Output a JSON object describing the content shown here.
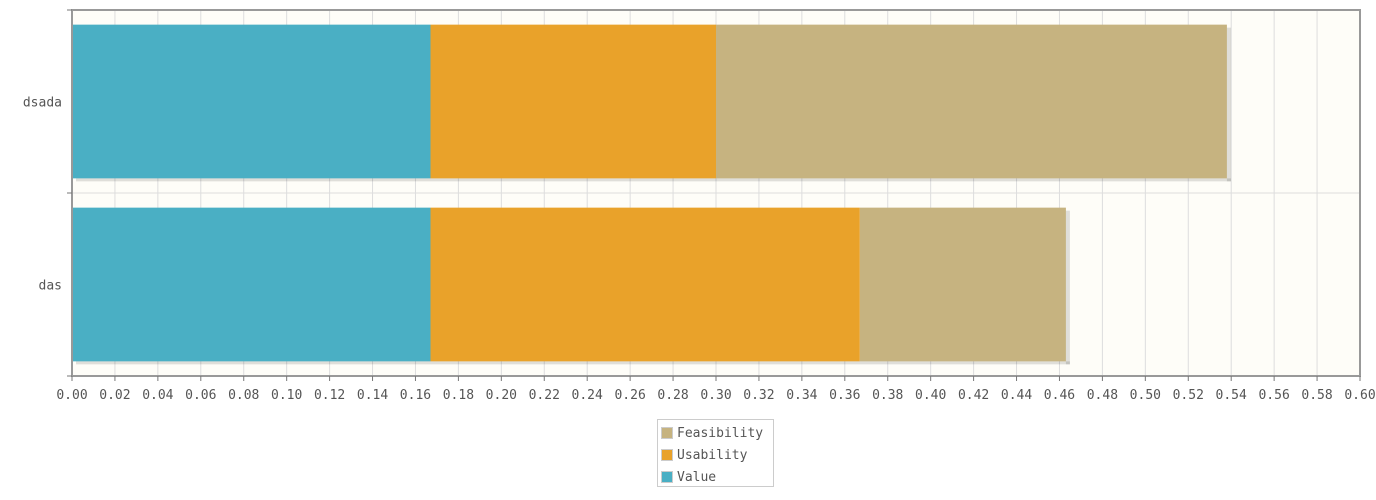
{
  "chart_data": {
    "type": "bar",
    "orientation": "horizontal",
    "stacked": true,
    "categories": [
      "dsada",
      "das"
    ],
    "series": [
      {
        "name": "Value",
        "color": "#4AAFC4",
        "values": [
          0.167,
          0.167
        ]
      },
      {
        "name": "Usability",
        "color": "#E9A22A",
        "values": [
          0.133,
          0.2
        ]
      },
      {
        "name": "Feasibility",
        "color": "#C6B380",
        "values": [
          0.238,
          0.096
        ]
      }
    ],
    "xlim": [
      0,
      0.6
    ],
    "xticks": [
      "0.00",
      "0.02",
      "0.04",
      "0.06",
      "0.08",
      "0.10",
      "0.12",
      "0.14",
      "0.16",
      "0.18",
      "0.20",
      "0.22",
      "0.24",
      "0.26",
      "0.28",
      "0.30",
      "0.32",
      "0.34",
      "0.36",
      "0.38",
      "0.40",
      "0.42",
      "0.44",
      "0.46",
      "0.48",
      "0.50",
      "0.52",
      "0.54",
      "0.56",
      "0.58",
      "0.60"
    ],
    "grid": true,
    "legend_position": "bottom",
    "plot_background": "#FEFDF8"
  },
  "legend": {
    "items": [
      {
        "label": "Feasibility",
        "color": "#C6B380"
      },
      {
        "label": "Usability",
        "color": "#E9A22A"
      },
      {
        "label": "Value",
        "color": "#4AAFC4"
      }
    ]
  }
}
